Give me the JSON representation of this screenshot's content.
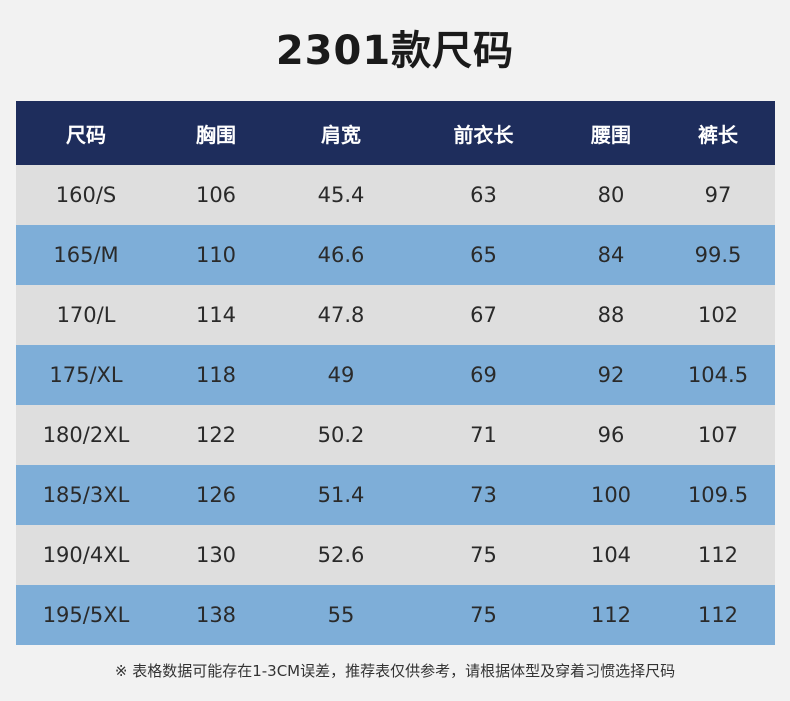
{
  "title": "2301款尺码",
  "headers": [
    "尺码",
    "胸围",
    "肩宽",
    "前衣长",
    "腰围",
    "裤长"
  ],
  "rows": [
    [
      "160/S",
      "106",
      "45.4",
      "63",
      "80",
      "97"
    ],
    [
      "165/M",
      "110",
      "46.6",
      "65",
      "84",
      "99.5"
    ],
    [
      "170/L",
      "114",
      "47.8",
      "67",
      "88",
      "102"
    ],
    [
      "175/XL",
      "118",
      "49",
      "69",
      "92",
      "104.5"
    ],
    [
      "180/2XL",
      "122",
      "50.2",
      "71",
      "96",
      "107"
    ],
    [
      "185/3XL",
      "126",
      "51.4",
      "73",
      "100",
      "109.5"
    ],
    [
      "190/4XL",
      "130",
      "52.6",
      "75",
      "104",
      "112"
    ],
    [
      "195/5XL",
      "138",
      "55",
      "75",
      "112",
      "112"
    ]
  ],
  "note": "※ 表格数据可能存在1-3CM误差，推荐表仅供参考，请根据体型及穿着习惯选择尺码",
  "colors": {
    "header_bg": "#1e2d5c",
    "row_odd_bg": "#dedede",
    "row_even_bg": "#7eaed8"
  }
}
